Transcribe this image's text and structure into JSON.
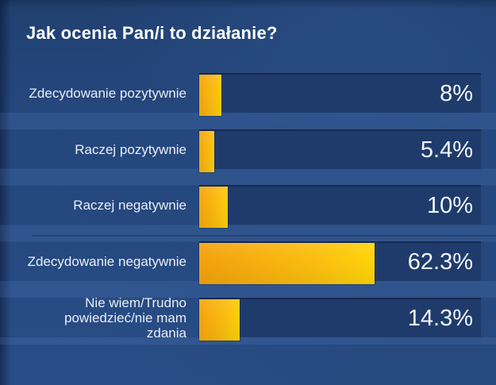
{
  "title": "Jak ocenia Pan/i to działanie?",
  "chart_data": {
    "type": "bar",
    "orientation": "horizontal",
    "title": "Jak ocenia Pan/i to działanie?",
    "categories": [
      "Zdecydowanie pozytywnie",
      "Raczej pozytywnie",
      "Raczej negatywnie",
      "Zdecydowanie negatywnie",
      "Nie wiem/Trudno powiedzieć/nie mam zdania"
    ],
    "values": [
      8,
      5.4,
      10,
      62.3,
      14.3
    ],
    "value_labels": [
      "8%",
      "5.4%",
      "10%",
      "62.3%",
      "14.3%"
    ],
    "xlim": [
      0,
      100
    ],
    "grid": false,
    "legend": false,
    "colors": {
      "background": "#24477e",
      "bar_track": "#1f3b6c",
      "bar_fill_orange": "#f4a10d",
      "bar_fill_yellow": "#ffd60a",
      "text": "#ffffff"
    }
  }
}
